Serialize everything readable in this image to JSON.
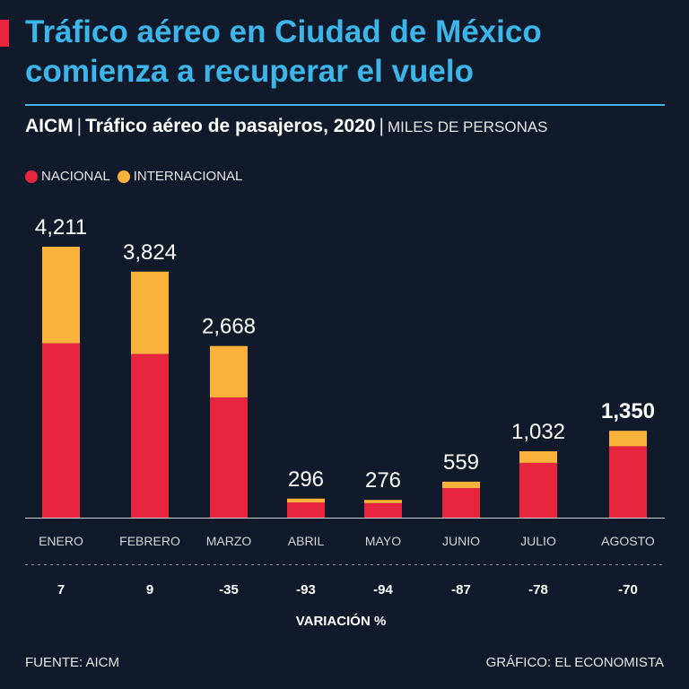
{
  "header": {
    "title": "Tráfico aéreo en Ciudad de México comienza a recuperar el vuelo",
    "subtitle_strong": "AICM",
    "subtitle_main": "Tráfico aéreo de pasajeros, 2020",
    "subtitle_units": "MILES DE PERSONAS"
  },
  "legend": {
    "nacional": "NACIONAL",
    "internacional": "INTERNACIONAL"
  },
  "colors": {
    "background": "#101a2a",
    "title": "#3cb6ea",
    "nacional": "#e8253f",
    "internacional": "#f9b23a",
    "text": "#ffffff"
  },
  "chart_data": {
    "type": "bar",
    "stacked": true,
    "title": "Tráfico aéreo de pasajeros, 2020",
    "ylabel": "Miles de personas",
    "categories": [
      "ENERO",
      "FEBRERO",
      "MARZO",
      "ABRIL",
      "MAYO",
      "JUNIO",
      "JULIO",
      "AGOSTO"
    ],
    "series": [
      {
        "name": "NACIONAL",
        "values": [
          2711,
          2544,
          1868,
          236,
          226,
          459,
          852,
          1110
        ]
      },
      {
        "name": "INTERNACIONAL",
        "values": [
          1500,
          1280,
          800,
          60,
          50,
          100,
          180,
          240
        ]
      }
    ],
    "totals": [
      "4,211",
      "3,824",
      "2,668",
      "296",
      "276",
      "559",
      "1,032",
      "1,350"
    ],
    "highlight_index": 7,
    "ylim": [
      0,
      4211
    ],
    "variation": [
      "7",
      "9",
      "-35",
      "-93",
      "-94",
      "-87",
      "-78",
      "-70"
    ],
    "variation_label": "VARIACIÓN %"
  },
  "footer": {
    "source": "FUENTE: AICM",
    "credit": "GRÁFICO: EL ECONOMISTA"
  }
}
